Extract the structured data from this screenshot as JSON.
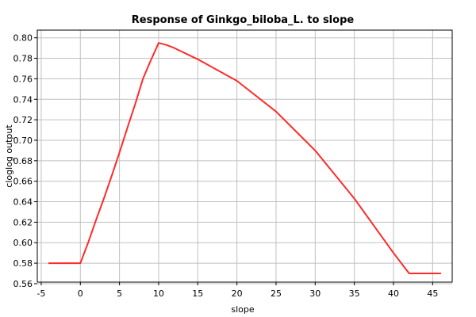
{
  "chart_data": {
    "type": "line",
    "title": "Response of Ginkgo_biloba_L. to slope",
    "xlabel": "slope",
    "ylabel": "cloglog output",
    "xlim": [
      -5.5,
      47.5
    ],
    "ylim": [
      0.5615,
      0.8075
    ],
    "xticks": [
      -5,
      0,
      5,
      10,
      15,
      20,
      25,
      30,
      35,
      40,
      45
    ],
    "xtick_labels": [
      "-5",
      "0",
      "5",
      "10",
      "15",
      "20",
      "25",
      "30",
      "35",
      "40",
      "45"
    ],
    "yticks": [
      0.56,
      0.58,
      0.6,
      0.62,
      0.64,
      0.66,
      0.68,
      0.7,
      0.72,
      0.74,
      0.76,
      0.78,
      0.8
    ],
    "ytick_labels": [
      "0.56",
      "0.58",
      "0.60",
      "0.62",
      "0.64",
      "0.66",
      "0.68",
      "0.70",
      "0.72",
      "0.74",
      "0.76",
      "0.78",
      "0.80"
    ],
    "grid": true,
    "color": "#ff2a2a",
    "series": [
      {
        "x": [
          -4,
          0,
          1,
          2,
          3,
          4,
          5,
          6,
          7,
          8,
          9,
          10,
          11,
          12,
          15,
          20,
          25,
          30,
          35,
          40,
          42,
          46
        ],
        "y": [
          0.58,
          0.58,
          0.6,
          0.622,
          0.643,
          0.665,
          0.688,
          0.712,
          0.735,
          0.76,
          0.778,
          0.795,
          0.793,
          0.79,
          0.779,
          0.758,
          0.728,
          0.69,
          0.643,
          0.59,
          0.57,
          0.57
        ]
      }
    ]
  }
}
